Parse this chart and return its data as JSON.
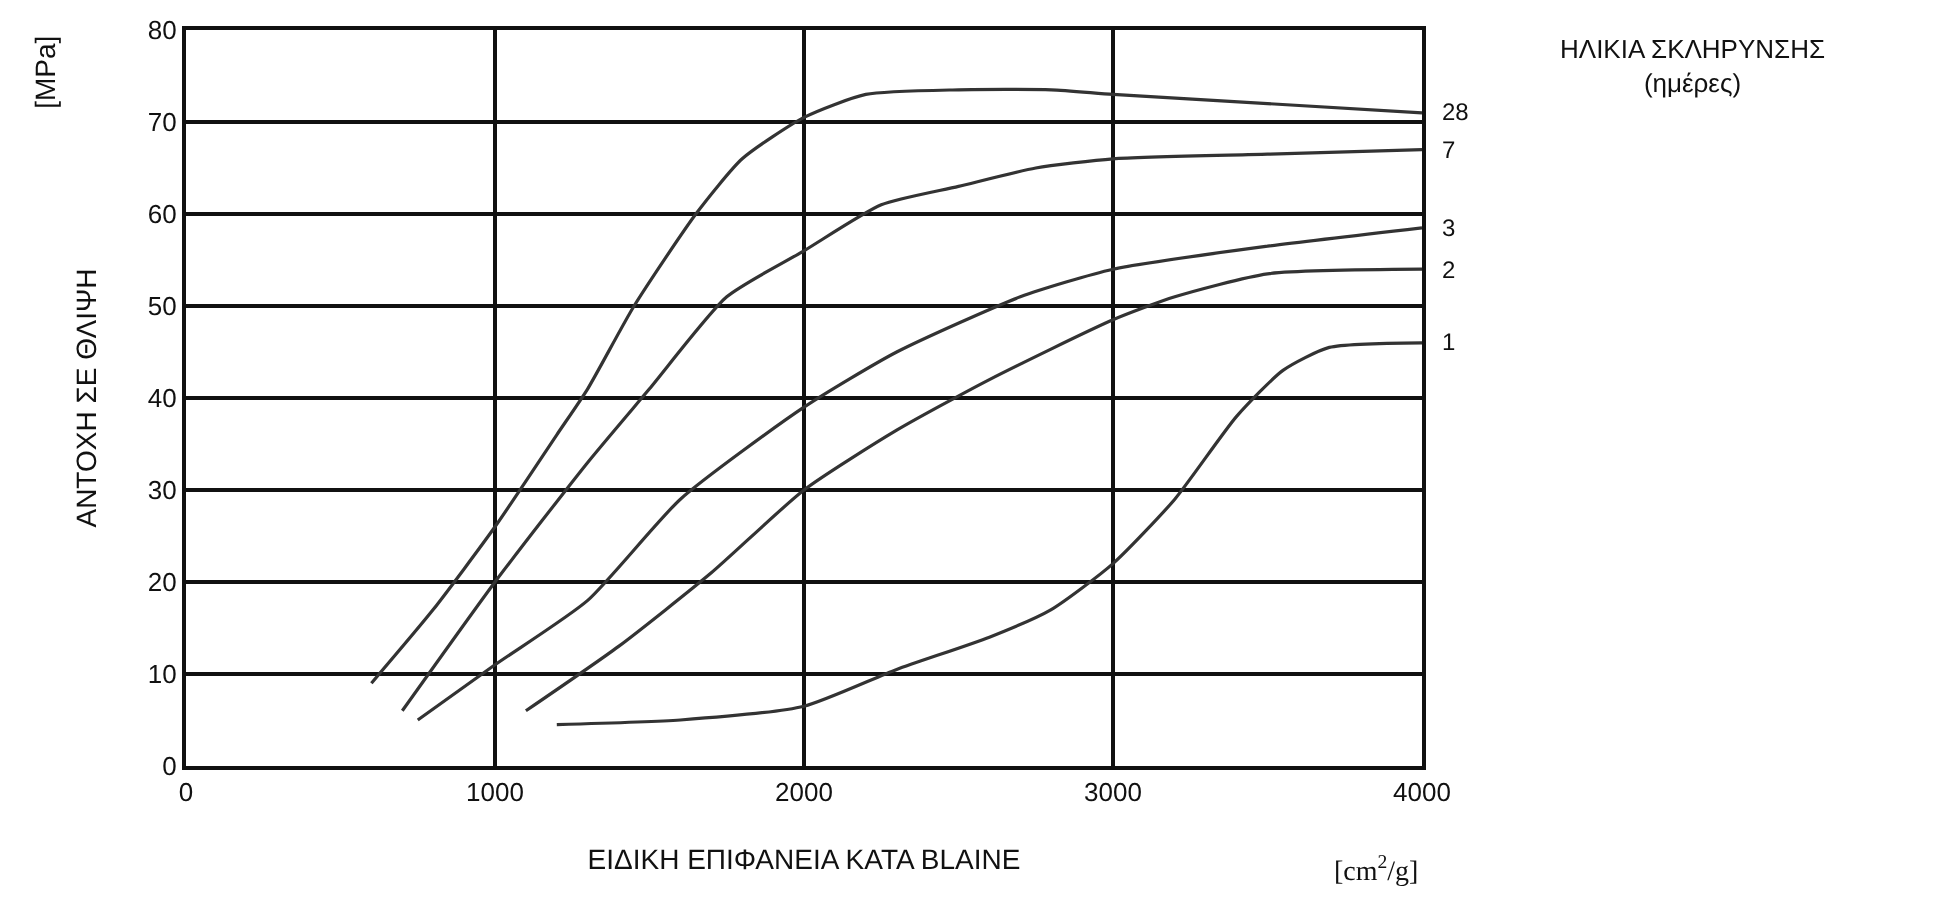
{
  "chart_data": {
    "type": "line",
    "xlabel": "ΕΙΔΙΚΗ ΕΠΙΦΑΝΕΙΑ ΚΑΤΑ BLAINE",
    "ylabel": "ΑΝΤΟΧΗ ΣΕ ΘΛΙΨΗ",
    "legend_title": "ΗΛΙΚΙΑ ΣΚΛΗΡΥΝΣΗΣ\n(ημέρες)",
    "annotations": [
      "[MPa]",
      "[cm$^{2}$/g]"
    ],
    "xlim": [
      0,
      4000
    ],
    "xticks": [
      0,
      1000,
      2000,
      3000,
      4000
    ],
    "ylim": [
      0,
      80
    ],
    "yticks": [
      0,
      10,
      20,
      30,
      40,
      50,
      60,
      70,
      80
    ],
    "grid": true,
    "legend": false,
    "marker": "none",
    "line_style": "solid",
    "series": [
      {
        "name": "28",
        "color": "#333333",
        "x": [
          600,
          800,
          1000,
          1200,
          1300,
          1450,
          1650,
          1800,
          2000,
          2200,
          2500,
          2800,
          3000,
          3500,
          4000
        ],
        "values": [
          9,
          17,
          26,
          36,
          41,
          50,
          60,
          66,
          70.5,
          73,
          73.5,
          73.5,
          73,
          72,
          71
        ]
      },
      {
        "name": "7",
        "color": "#333333",
        "x": [
          700,
          1000,
          1300,
          1500,
          1750,
          2000,
          2250,
          2500,
          2750,
          3000,
          3500,
          4000
        ],
        "values": [
          6,
          20,
          33,
          41,
          51,
          56,
          61,
          63,
          65,
          66,
          66.5,
          67
        ]
      },
      {
        "name": "3",
        "color": "#333333",
        "x": [
          750,
          1000,
          1300,
          1600,
          2000,
          2300,
          2700,
          3000,
          3500,
          4000
        ],
        "values": [
          5,
          11,
          18,
          29,
          39,
          45,
          51,
          54,
          56.5,
          58.5
        ]
      },
      {
        "name": "2",
        "color": "#333333",
        "x": [
          1100,
          1400,
          1700,
          2000,
          2300,
          2600,
          3000,
          3200,
          3500,
          4000
        ],
        "values": [
          6,
          13,
          21,
          30,
          36.5,
          42,
          48.5,
          51,
          53.5,
          54
        ]
      },
      {
        "name": "1",
        "color": "#333333",
        "x": [
          1200,
          1600,
          2000,
          2300,
          2600,
          2800,
          3000,
          3200,
          3400,
          3550,
          3700,
          4000
        ],
        "values": [
          4.5,
          5,
          6.5,
          10.5,
          14,
          17,
          22,
          29,
          38,
          43,
          45.5,
          46
        ]
      }
    ]
  }
}
